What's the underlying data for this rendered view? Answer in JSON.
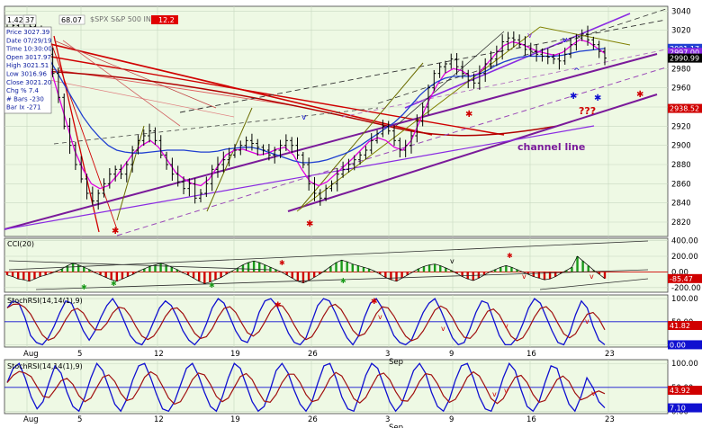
{
  "chart_data": {
    "type": "line",
    "title": "$SPX S&P 500 INDEX",
    "header_values": [
      "1.42",
      "37",
      "68.07",
      "12.2"
    ],
    "info_box": [
      {
        "label": "Price",
        "value": "3027.39"
      },
      {
        "label": "Date",
        "value": "07/29/19"
      },
      {
        "label": "Time",
        "value": "10:30:00"
      },
      {
        "label": "Open",
        "value": "3017.97"
      },
      {
        "label": "High",
        "value": "3021.51"
      },
      {
        "label": "Low",
        "value": "3016.96"
      },
      {
        "label": "Close",
        "value": "3021.20"
      },
      {
        "label": "Chg %",
        "value": "7.4"
      },
      {
        "label": "# Bars",
        "value": "-230"
      },
      {
        "label": "Bar Ix",
        "value": "-271"
      }
    ],
    "date_labels": [
      "Aug",
      "5",
      "12",
      "19",
      "26",
      "3",
      "9",
      "16",
      "23"
    ],
    "date_sublabels": [
      "Sep"
    ],
    "price_axis": {
      "ticks": [
        3040,
        3020,
        3000,
        2980,
        2960,
        2940,
        2920,
        2900,
        2880,
        2860,
        2840,
        2820
      ],
      "range": [
        2805,
        3045
      ],
      "badges": [
        {
          "value": 3001.17,
          "text": "3001.17",
          "color": "#2040d0"
        },
        {
          "value": 2997.0,
          "text": "2997.00",
          "color": "#8a2be2"
        },
        {
          "value": 2990.99,
          "text": "2990.99",
          "color": "#000000"
        },
        {
          "value": 2938.52,
          "text": "2938.52",
          "color": "#d00000"
        }
      ]
    },
    "price_series": {
      "name": "SPX",
      "values": [
        3020,
        3025,
        3023,
        3027,
        3024,
        3018,
        3010,
        2995,
        2975,
        2950,
        2920,
        2900,
        2880,
        2865,
        2850,
        2842,
        2850,
        2860,
        2870,
        2875,
        2870,
        2880,
        2895,
        2905,
        2910,
        2915,
        2905,
        2890,
        2880,
        2870,
        2862,
        2855,
        2860,
        2845,
        2850,
        2860,
        2875,
        2880,
        2885,
        2890,
        2895,
        2900,
        2905,
        2902,
        2898,
        2895,
        2890,
        2895,
        2900,
        2905,
        2900,
        2890,
        2880,
        2860,
        2850,
        2845,
        2855,
        2860,
        2870,
        2875,
        2880,
        2885,
        2890,
        2895,
        2905,
        2912,
        2920,
        2915,
        2905,
        2895,
        2900,
        2910,
        2925,
        2940,
        2960,
        2975,
        2982,
        2985,
        2990,
        2982,
        2975,
        2968,
        2965,
        2975,
        2985,
        2990,
        2998,
        3008,
        3012,
        3010,
        3005,
        3000,
        2998,
        2995,
        2993,
        2992,
        2990,
        2988,
        2995,
        3005,
        3012,
        3016,
        3010,
        3005,
        2998,
        2991
      ]
    },
    "overlay_series": [
      {
        "color": "#e000e0",
        "values": [
          3015,
          3020,
          3022,
          3018,
          3005,
          2985,
          2955,
          2925,
          2895,
          2875,
          2860,
          2855,
          2858,
          2868,
          2880,
          2892,
          2900,
          2905,
          2898,
          2885,
          2872,
          2865,
          2860,
          2858,
          2865,
          2878,
          2890,
          2895,
          2896,
          2893,
          2890,
          2892,
          2896,
          2898,
          2890,
          2875,
          2862,
          2858,
          2862,
          2870,
          2878,
          2886,
          2895,
          2904,
          2908,
          2905,
          2898,
          2895,
          2905,
          2925,
          2945,
          2962,
          2975,
          2980,
          2978,
          2972,
          2975,
          2985,
          2995,
          3004,
          3008,
          3006,
          3002,
          2998,
          2996,
          2994,
          2997,
          3004,
          3010,
          3008,
          3002,
          2996
        ]
      },
      {
        "color": "#1f3fd0",
        "values": [
          3010,
          3012,
          3012,
          3008,
          3000,
          2990,
          2975,
          2960,
          2945,
          2930,
          2918,
          2908,
          2900,
          2895,
          2893,
          2892,
          2892,
          2893,
          2894,
          2895,
          2895,
          2895,
          2894,
          2893,
          2893,
          2894,
          2896,
          2897,
          2898,
          2898,
          2896,
          2893,
          2890,
          2887,
          2884,
          2882,
          2882,
          2883,
          2885,
          2888,
          2891,
          2895,
          2900,
          2906,
          2912,
          2918,
          2924,
          2932,
          2942,
          2952,
          2960,
          2966,
          2970,
          2972,
          2972,
          2972,
          2974,
          2978,
          2983,
          2987,
          2990,
          2992,
          2993,
          2993,
          2993,
          2993,
          2994,
          2996,
          2998,
          2999,
          3000,
          3001
        ]
      }
    ],
    "annotations": [
      "channel line",
      "???"
    ],
    "cci": {
      "label": "CCI(20)",
      "ticks": [
        400,
        200,
        0,
        -200
      ],
      "range": [
        -260,
        430
      ],
      "value": "-85.47",
      "values": [
        -40,
        -60,
        -90,
        -100,
        -120,
        -90,
        -60,
        -40,
        -20,
        10,
        40,
        80,
        110,
        90,
        60,
        30,
        -10,
        -40,
        -70,
        -100,
        -120,
        -90,
        -60,
        -30,
        10,
        40,
        70,
        90,
        110,
        90,
        60,
        30,
        -10,
        -40,
        -80,
        -120,
        -150,
        -130,
        -100,
        -70,
        -30,
        10,
        50,
        90,
        120,
        140,
        120,
        90,
        60,
        30,
        0,
        -40,
        -80,
        -120,
        -140,
        -110,
        -70,
        -30,
        20,
        70,
        120,
        150,
        130,
        100,
        80,
        60,
        40,
        10,
        -30,
        -70,
        -100,
        -120,
        -80,
        -40,
        0,
        40,
        70,
        90,
        100,
        80,
        50,
        20,
        -20,
        -60,
        -90,
        -110,
        -80,
        -40,
        0,
        30,
        60,
        80,
        60,
        30,
        0,
        -30,
        -60,
        -80,
        -100,
        -90,
        -60,
        -20,
        20,
        60,
        200,
        140,
        80,
        20,
        -30,
        -85
      ]
    },
    "stochrsi_1": {
      "label": "StochRSI(14,14(1),9)",
      "ticks": [
        100,
        50,
        0
      ],
      "range": [
        -5,
        108
      ],
      "value_red": "41.82",
      "value_blue": "0.00",
      "tag": "50.00",
      "values": [
        80,
        95,
        90,
        60,
        20,
        5,
        0,
        15,
        40,
        70,
        95,
        90,
        60,
        30,
        10,
        30,
        60,
        85,
        100,
        80,
        50,
        20,
        5,
        0,
        20,
        50,
        80,
        95,
        85,
        60,
        30,
        10,
        0,
        15,
        45,
        80,
        100,
        90,
        60,
        30,
        10,
        5,
        30,
        70,
        95,
        100,
        85,
        55,
        25,
        5,
        0,
        15,
        50,
        85,
        100,
        95,
        70,
        40,
        15,
        0,
        20,
        60,
        90,
        100,
        80,
        50,
        20,
        5,
        0,
        10,
        40,
        70,
        90,
        100,
        75,
        45,
        15,
        0,
        5,
        35,
        70,
        95,
        90,
        55,
        20,
        0,
        0,
        15,
        45,
        80,
        100,
        90,
        60,
        30,
        5,
        0,
        25,
        65,
        95,
        80,
        40,
        10,
        0
      ]
    },
    "stochrsi_2": {
      "label": "StochRSI(14,14(1),9)",
      "ticks": [
        100,
        50,
        0
      ],
      "range": [
        -5,
        108
      ],
      "value_red": "43.92",
      "value_blue": "7.10",
      "values": [
        60,
        90,
        100,
        70,
        30,
        5,
        20,
        60,
        95,
        80,
        40,
        10,
        0,
        30,
        70,
        100,
        85,
        50,
        15,
        0,
        25,
        65,
        95,
        100,
        70,
        35,
        5,
        0,
        20,
        55,
        90,
        100,
        75,
        40,
        10,
        0,
        30,
        70,
        100,
        90,
        55,
        20,
        0,
        10,
        45,
        85,
        100,
        80,
        45,
        15,
        0,
        20,
        60,
        95,
        100,
        70,
        30,
        5,
        0,
        35,
        75,
        100,
        90,
        55,
        20,
        0,
        15,
        50,
        85,
        100,
        80,
        40,
        10,
        0,
        25,
        65,
        95,
        100,
        70,
        30,
        5,
        0,
        30,
        70,
        100,
        85,
        45,
        10,
        0,
        20,
        60,
        95,
        90,
        50,
        15,
        0,
        30,
        70,
        50,
        20,
        7
      ]
    }
  }
}
